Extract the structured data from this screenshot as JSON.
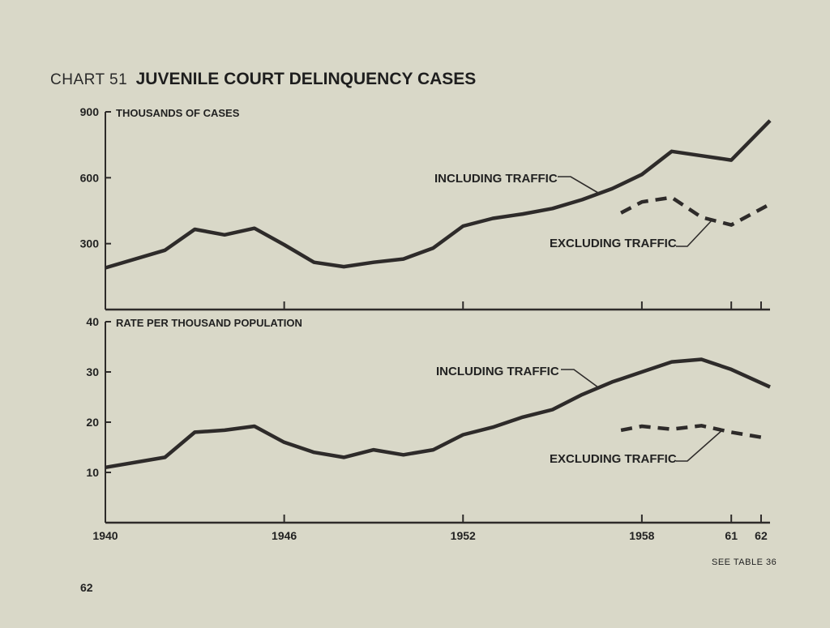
{
  "header": {
    "chart_number": "CHART 51",
    "title": "JUVENILE COURT DELINQUENCY CASES"
  },
  "footnote": "SEE TABLE 36",
  "page_number": "62",
  "colors": {
    "background": "#d9d8c8",
    "ink": "#2e2b2a"
  },
  "chart_data": [
    {
      "type": "line",
      "title": "JUVENILE COURT DELINQUENCY CASES",
      "ylabel": "THOUSANDS OF CASES",
      "xlabel": "",
      "x_ticks": [
        1940,
        1946,
        1952,
        1958,
        1961,
        1962
      ],
      "y_ticks": [
        300,
        600,
        900
      ],
      "ylim": [
        0,
        900
      ],
      "xlim": [
        1940,
        1962.3
      ],
      "series": [
        {
          "name": "INCLUDING TRAFFIC",
          "style": "solid",
          "x": [
            1940,
            1942,
            1943,
            1944,
            1945,
            1946,
            1947,
            1948,
            1949,
            1950,
            1951,
            1952,
            1953,
            1954,
            1955,
            1956,
            1957,
            1958,
            1959,
            1960,
            1961,
            1962.3
          ],
          "values": [
            190,
            270,
            365,
            340,
            370,
            295,
            215,
            195,
            215,
            230,
            280,
            380,
            415,
            435,
            460,
            500,
            550,
            615,
            720,
            700,
            680,
            860
          ]
        },
        {
          "name": "EXCLUDING TRAFFIC",
          "style": "dashed",
          "x": [
            1957.3,
            1958,
            1959,
            1960,
            1961,
            1962.3
          ],
          "values": [
            440,
            490,
            510,
            420,
            385,
            480
          ]
        }
      ]
    },
    {
      "type": "line",
      "ylabel": "RATE PER THOUSAND POPULATION",
      "xlabel": "",
      "x_ticks": [
        1940,
        1946,
        1952,
        1958,
        1961,
        1962
      ],
      "y_ticks": [
        10,
        20,
        30,
        40
      ],
      "ylim": [
        0,
        40
      ],
      "xlim": [
        1940,
        1962.3
      ],
      "series": [
        {
          "name": "INCLUDING TRAFFIC",
          "style": "solid",
          "x": [
            1940,
            1942,
            1943,
            1944,
            1945,
            1946,
            1947,
            1948,
            1949,
            1950,
            1951,
            1952,
            1953,
            1954,
            1955,
            1956,
            1957,
            1958,
            1959,
            1960,
            1961,
            1962.3
          ],
          "values": [
            11,
            13,
            18,
            18.4,
            19.2,
            16,
            14,
            13,
            14.5,
            13.5,
            14.5,
            17.5,
            19,
            21,
            22.5,
            25.5,
            28,
            30,
            32,
            32.5,
            30.5,
            27
          ]
        },
        {
          "name": "EXCLUDING TRAFFIC",
          "style": "dashed",
          "x": [
            1957.3,
            1958,
            1959,
            1960,
            1961,
            1962
          ],
          "values": [
            18.4,
            19.2,
            18.6,
            19.3,
            18,
            17
          ]
        }
      ]
    }
  ]
}
